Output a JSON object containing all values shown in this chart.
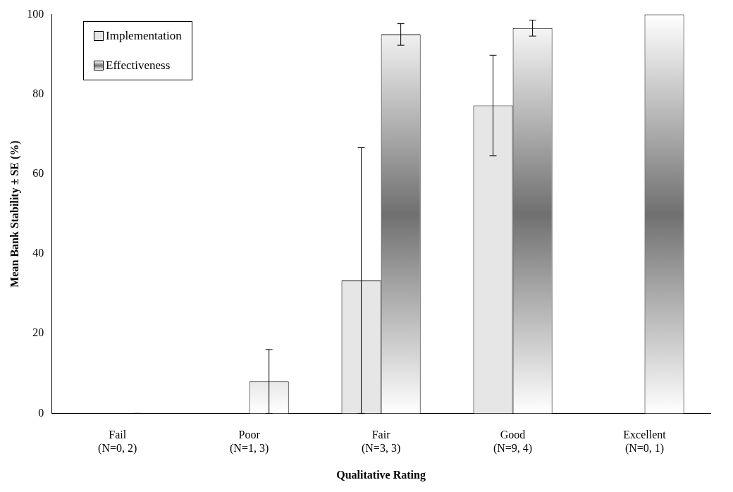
{
  "chart_data": {
    "type": "bar",
    "xlabel": "Qualitative Rating",
    "ylabel": "Mean Bank Stability ± SE (%)",
    "categories": [
      "Fail\n(N=0, 2)",
      "Poor\n(N=1, 3)",
      "Fair\n(N=3, 3)",
      "Good\n(N=9, 4)",
      "Excellent\n(N=0, 1)"
    ],
    "series": [
      {
        "name": "Implementation",
        "color": "#e6e6e6",
        "values": [
          null,
          0,
          33.3,
          77.2,
          null
        ],
        "errors": [
          null,
          null,
          33.3,
          12.6,
          null
        ]
      },
      {
        "name": "Effectiveness",
        "color": "#707070",
        "values": [
          0,
          8,
          95,
          96.6,
          100
        ],
        "errors": [
          0,
          8,
          2.7,
          2,
          null
        ]
      }
    ],
    "ylim": [
      0,
      100
    ],
    "yticks": [
      0,
      20,
      40,
      60,
      80,
      100
    ],
    "grid": false,
    "legend": "top left"
  }
}
